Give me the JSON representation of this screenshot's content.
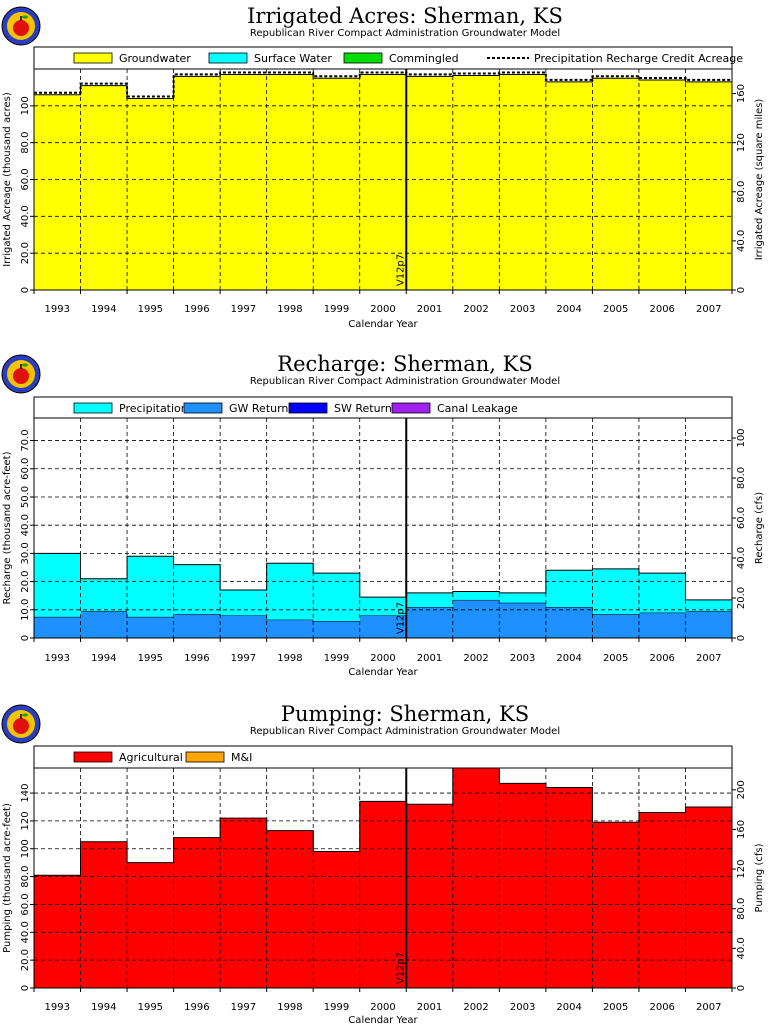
{
  "logo": {
    "alt": "apple logo"
  },
  "annotation": {
    "marker_label": "V12p7",
    "marker_x": 2000.5
  },
  "chart_data": [
    {
      "type": "area",
      "title": "Irrigated Acres: Sherman, KS",
      "subtitle": "Republican River Compact Administration Groundwater Model",
      "xlabel": "Calendar Year",
      "ylabel": "Irrigated Acreage (thousand acres)",
      "ylabel_right": "Irrigated Acreage (square miles)",
      "categories": [
        "1993",
        "1994",
        "1995",
        "1996",
        "1997",
        "1998",
        "1999",
        "2000",
        "2001",
        "2002",
        "2003",
        "2004",
        "2005",
        "2006",
        "2007"
      ],
      "ylim": [
        0,
        120
      ],
      "y_ticks": [
        "0",
        "20.0",
        "40.0",
        "60.0",
        "80.0",
        "100"
      ],
      "y_ticks_right": [
        "0",
        "40.0",
        "80.0",
        "120",
        "160"
      ],
      "grid": true,
      "legend": [
        "Groundwater",
        "Surface Water",
        "Commingled",
        "Precipitation Recharge Credit Acreage"
      ],
      "colors": [
        "#ffff00",
        "#00ffff",
        "#00dd00",
        "#000000"
      ],
      "series": [
        {
          "name": "Groundwater",
          "values": [
            106,
            111,
            104,
            116,
            117,
            117,
            115,
            117,
            116,
            116.5,
            117,
            113,
            115,
            114,
            113
          ]
        },
        {
          "name": "Surface Water",
          "values": [
            0,
            0,
            0,
            0,
            0,
            0,
            0,
            0,
            0,
            0,
            0,
            0,
            0,
            0,
            0
          ]
        },
        {
          "name": "Commingled",
          "values": [
            0,
            0,
            0,
            0,
            0,
            0,
            0,
            0,
            0,
            0,
            0,
            0,
            0,
            0,
            0
          ]
        },
        {
          "name": "Precipitation Recharge Credit Acreage",
          "values": [
            106,
            111,
            104,
            116,
            117,
            117,
            115,
            117,
            116,
            116.5,
            117,
            113,
            115,
            114,
            113
          ]
        }
      ]
    },
    {
      "type": "area",
      "title": "Recharge: Sherman, KS",
      "subtitle": "Republican River Compact Administration Groundwater Model",
      "xlabel": "",
      "ylabel": "Recharge (thousand acre-feet)",
      "ylabel_right": "Recharge (cfs)",
      "categories": [
        "1993",
        "1994",
        "1995",
        "1996",
        "1997",
        "1998",
        "1999",
        "2000",
        "2001",
        "2002",
        "2003",
        "2004",
        "2005",
        "2006",
        "2007"
      ],
      "ylim": [
        0,
        78
      ],
      "y_ticks": [
        "0",
        "10.0",
        "20.0",
        "30.0",
        "40.0",
        "50.0",
        "60.0",
        "70.0"
      ],
      "y_ticks_right": [
        "0",
        "20.0",
        "40.0",
        "60.0",
        "80.0",
        "100"
      ],
      "grid": true,
      "legend": [
        "Precipitation",
        "GW Returns",
        "SW Returns",
        "Canal Leakage"
      ],
      "colors": [
        "#00ffff",
        "#1e90ff",
        "#0000ff",
        "#a020f0"
      ],
      "series": [
        {
          "name": "GW Returns",
          "values": [
            7.5,
            9.5,
            7.5,
            8.5,
            8,
            6.5,
            6,
            8,
            11,
            13.5,
            12.5,
            11,
            8.5,
            9,
            9.5
          ]
        },
        {
          "name": "Precipitation",
          "values": [
            22.5,
            11.5,
            21.5,
            17.5,
            9,
            20,
            17,
            6.5,
            5,
            3,
            3.5,
            13,
            16,
            14,
            4
          ]
        },
        {
          "name": "SW Returns",
          "values": [
            0,
            0,
            0,
            0,
            0,
            0,
            0,
            0,
            0,
            0,
            0,
            0,
            0,
            0,
            0
          ]
        },
        {
          "name": "Canal Leakage",
          "values": [
            0,
            0,
            0,
            0,
            0,
            0,
            0,
            0,
            0,
            0,
            0,
            0,
            0,
            0,
            0
          ]
        }
      ]
    },
    {
      "type": "area",
      "title": "Pumping: Sherman, KS",
      "subtitle": "Republican River Compact Administration Groundwater Model",
      "xlabel": "Calendar Year",
      "ylabel": "Pumping (thousand acre-feet)",
      "ylabel_right": "Pumping (cfs)",
      "categories": [
        "1993",
        "1994",
        "1995",
        "1996",
        "1997",
        "1998",
        "1999",
        "2000",
        "2001",
        "2002",
        "2003",
        "2004",
        "2005",
        "2006",
        "2007"
      ],
      "ylim": [
        0,
        158
      ],
      "y_ticks": [
        "0",
        "20.0",
        "40.0",
        "60.0",
        "80.0",
        "100",
        "120",
        "140"
      ],
      "y_ticks_right": [
        "0",
        "40.0",
        "80.0",
        "120",
        "160",
        "200"
      ],
      "grid": true,
      "legend": [
        "Agricultural",
        "M&I"
      ],
      "colors": [
        "#ff0000",
        "#ffa500"
      ],
      "series": [
        {
          "name": "Agricultural",
          "values": [
            81,
            105,
            90,
            108,
            122,
            113,
            98,
            134,
            132,
            158,
            147,
            144,
            119,
            126,
            130
          ]
        },
        {
          "name": "M&I",
          "values": [
            0,
            0,
            0,
            0,
            0,
            0,
            0,
            0,
            0,
            0,
            0,
            0,
            0,
            0,
            0
          ]
        }
      ]
    }
  ]
}
